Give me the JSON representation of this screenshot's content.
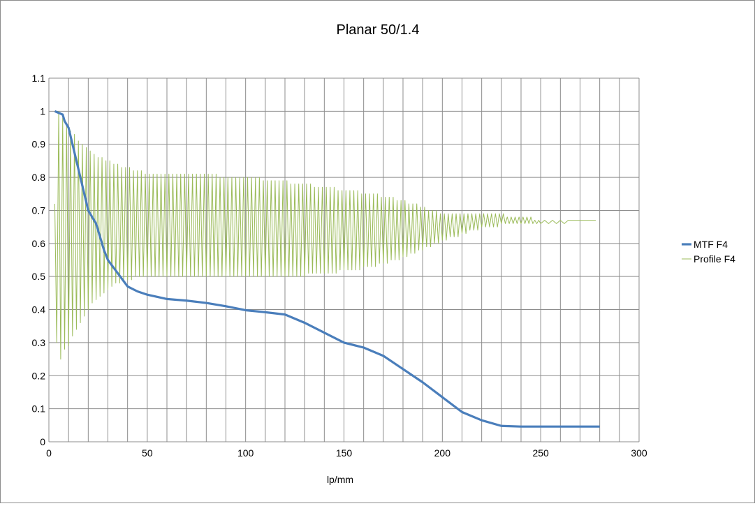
{
  "colors": {
    "mtf": "#4a7ebb",
    "profile": "#9bbb59",
    "grid": "#8c8c8c",
    "frame": "#8c8c8c"
  },
  "chart_data": {
    "type": "line",
    "title": "Planar 50/1.4",
    "xlabel": "lp/mm",
    "ylabel": "",
    "xlim": [
      0,
      300
    ],
    "ylim": [
      0,
      1.1
    ],
    "x_ticks": [
      "0",
      "50",
      "100",
      "150",
      "200",
      "250",
      "300"
    ],
    "y_ticks": [
      "0",
      "0.1",
      "0.2",
      "0.3",
      "0.4",
      "0.5",
      "0.6",
      "0.7",
      "0.8",
      "0.9",
      "1",
      "1.1"
    ],
    "grid": true,
    "legend_position": "right",
    "series": [
      {
        "name": "MTF F4",
        "points": [
          [
            3,
            1.0
          ],
          [
            5,
            0.995
          ],
          [
            7,
            0.99
          ],
          [
            8,
            0.97
          ],
          [
            10,
            0.95
          ],
          [
            12,
            0.9
          ],
          [
            14,
            0.85
          ],
          [
            16,
            0.8
          ],
          [
            18,
            0.75
          ],
          [
            20,
            0.7
          ],
          [
            22,
            0.68
          ],
          [
            24,
            0.66
          ],
          [
            26,
            0.62
          ],
          [
            28,
            0.58
          ],
          [
            30,
            0.55
          ],
          [
            35,
            0.51
          ],
          [
            40,
            0.47
          ],
          [
            45,
            0.455
          ],
          [
            50,
            0.445
          ],
          [
            60,
            0.432
          ],
          [
            70,
            0.427
          ],
          [
            80,
            0.42
          ],
          [
            90,
            0.41
          ],
          [
            100,
            0.398
          ],
          [
            110,
            0.392
          ],
          [
            120,
            0.385
          ],
          [
            130,
            0.36
          ],
          [
            140,
            0.33
          ],
          [
            150,
            0.3
          ],
          [
            160,
            0.285
          ],
          [
            170,
            0.26
          ],
          [
            180,
            0.22
          ],
          [
            190,
            0.18
          ],
          [
            200,
            0.135
          ],
          [
            210,
            0.09
          ],
          [
            220,
            0.065
          ],
          [
            230,
            0.048
          ],
          [
            240,
            0.046
          ],
          [
            250,
            0.046
          ],
          [
            260,
            0.046
          ],
          [
            270,
            0.046
          ],
          [
            280,
            0.046
          ]
        ]
      },
      {
        "name": "Profile F4",
        "points": [
          [
            3,
            0.72
          ],
          [
            4,
            0.3
          ],
          [
            5,
            1.0
          ],
          [
            6,
            0.25
          ],
          [
            7,
            0.98
          ],
          [
            8,
            0.28
          ],
          [
            9,
            0.96
          ],
          [
            10,
            0.29
          ],
          [
            11,
            0.94
          ],
          [
            12,
            0.32
          ],
          [
            13,
            0.93
          ],
          [
            14,
            0.34
          ],
          [
            15,
            0.91
          ],
          [
            16,
            0.36
          ],
          [
            17,
            0.9
          ],
          [
            18,
            0.38
          ],
          [
            19,
            0.89
          ],
          [
            20,
            0.4
          ],
          [
            21,
            0.88
          ],
          [
            22,
            0.42
          ],
          [
            23,
            0.87
          ],
          [
            24,
            0.43
          ],
          [
            25,
            0.86
          ],
          [
            26,
            0.44
          ],
          [
            27,
            0.86
          ],
          [
            28,
            0.45
          ],
          [
            29,
            0.85
          ],
          [
            30,
            0.46
          ],
          [
            31,
            0.85
          ],
          [
            32,
            0.47
          ],
          [
            33,
            0.84
          ],
          [
            34,
            0.48
          ],
          [
            35,
            0.84
          ],
          [
            36,
            0.48
          ],
          [
            37,
            0.83
          ],
          [
            38,
            0.49
          ],
          [
            39,
            0.83
          ],
          [
            40,
            0.49
          ],
          [
            41,
            0.83
          ],
          [
            42,
            0.49
          ],
          [
            43,
            0.82
          ],
          [
            44,
            0.5
          ],
          [
            45,
            0.82
          ],
          [
            46,
            0.5
          ],
          [
            47,
            0.82
          ],
          [
            48,
            0.5
          ],
          [
            49,
            0.81
          ],
          [
            50,
            0.5
          ],
          [
            51,
            0.81
          ],
          [
            52,
            0.5
          ],
          [
            53,
            0.81
          ],
          [
            54,
            0.5
          ],
          [
            55,
            0.81
          ],
          [
            56,
            0.5
          ],
          [
            57,
            0.81
          ],
          [
            58,
            0.5
          ],
          [
            59,
            0.81
          ],
          [
            60,
            0.5
          ],
          [
            61,
            0.81
          ],
          [
            62,
            0.5
          ],
          [
            63,
            0.81
          ],
          [
            64,
            0.5
          ],
          [
            65,
            0.81
          ],
          [
            66,
            0.5
          ],
          [
            67,
            0.81
          ],
          [
            68,
            0.5
          ],
          [
            69,
            0.81
          ],
          [
            70,
            0.5
          ],
          [
            71,
            0.81
          ],
          [
            72,
            0.5
          ],
          [
            73,
            0.81
          ],
          [
            74,
            0.5
          ],
          [
            75,
            0.81
          ],
          [
            76,
            0.5
          ],
          [
            77,
            0.81
          ],
          [
            78,
            0.5
          ],
          [
            79,
            0.81
          ],
          [
            80,
            0.5
          ],
          [
            81,
            0.81
          ],
          [
            82,
            0.5
          ],
          [
            83,
            0.81
          ],
          [
            84,
            0.5
          ],
          [
            85,
            0.81
          ],
          [
            86,
            0.5
          ],
          [
            87,
            0.8
          ],
          [
            88,
            0.5
          ],
          [
            89,
            0.8
          ],
          [
            90,
            0.5
          ],
          [
            91,
            0.8
          ],
          [
            92,
            0.5
          ],
          [
            93,
            0.8
          ],
          [
            94,
            0.5
          ],
          [
            95,
            0.8
          ],
          [
            96,
            0.5
          ],
          [
            97,
            0.8
          ],
          [
            98,
            0.5
          ],
          [
            99,
            0.8
          ],
          [
            100,
            0.5
          ],
          [
            101,
            0.8
          ],
          [
            102,
            0.5
          ],
          [
            103,
            0.8
          ],
          [
            104,
            0.5
          ],
          [
            105,
            0.8
          ],
          [
            106,
            0.5
          ],
          [
            107,
            0.8
          ],
          [
            108,
            0.5
          ],
          [
            109,
            0.79
          ],
          [
            110,
            0.5
          ],
          [
            111,
            0.79
          ],
          [
            112,
            0.5
          ],
          [
            113,
            0.79
          ],
          [
            114,
            0.5
          ],
          [
            115,
            0.79
          ],
          [
            116,
            0.5
          ],
          [
            117,
            0.79
          ],
          [
            118,
            0.5
          ],
          [
            119,
            0.79
          ],
          [
            120,
            0.5
          ],
          [
            121,
            0.79
          ],
          [
            122,
            0.5
          ],
          [
            123,
            0.78
          ],
          [
            124,
            0.5
          ],
          [
            125,
            0.78
          ],
          [
            126,
            0.5
          ],
          [
            127,
            0.78
          ],
          [
            128,
            0.5
          ],
          [
            129,
            0.78
          ],
          [
            130,
            0.5
          ],
          [
            131,
            0.78
          ],
          [
            132,
            0.51
          ],
          [
            133,
            0.78
          ],
          [
            134,
            0.51
          ],
          [
            135,
            0.77
          ],
          [
            136,
            0.51
          ],
          [
            137,
            0.77
          ],
          [
            138,
            0.51
          ],
          [
            139,
            0.77
          ],
          [
            140,
            0.51
          ],
          [
            141,
            0.77
          ],
          [
            142,
            0.51
          ],
          [
            143,
            0.77
          ],
          [
            144,
            0.51
          ],
          [
            145,
            0.77
          ],
          [
            146,
            0.51
          ],
          [
            147,
            0.76
          ],
          [
            148,
            0.52
          ],
          [
            149,
            0.76
          ],
          [
            150,
            0.52
          ],
          [
            151,
            0.76
          ],
          [
            152,
            0.52
          ],
          [
            153,
            0.76
          ],
          [
            154,
            0.52
          ],
          [
            155,
            0.76
          ],
          [
            156,
            0.52
          ],
          [
            157,
            0.76
          ],
          [
            158,
            0.52
          ],
          [
            159,
            0.75
          ],
          [
            160,
            0.53
          ],
          [
            161,
            0.75
          ],
          [
            162,
            0.53
          ],
          [
            163,
            0.75
          ],
          [
            164,
            0.53
          ],
          [
            165,
            0.75
          ],
          [
            166,
            0.53
          ],
          [
            167,
            0.75
          ],
          [
            168,
            0.54
          ],
          [
            169,
            0.74
          ],
          [
            170,
            0.54
          ],
          [
            171,
            0.74
          ],
          [
            172,
            0.54
          ],
          [
            173,
            0.74
          ],
          [
            174,
            0.55
          ],
          [
            175,
            0.74
          ],
          [
            176,
            0.55
          ],
          [
            177,
            0.73
          ],
          [
            178,
            0.55
          ],
          [
            179,
            0.73
          ],
          [
            180,
            0.56
          ],
          [
            181,
            0.73
          ],
          [
            182,
            0.56
          ],
          [
            183,
            0.72
          ],
          [
            184,
            0.57
          ],
          [
            185,
            0.72
          ],
          [
            186,
            0.57
          ],
          [
            187,
            0.72
          ],
          [
            188,
            0.58
          ],
          [
            189,
            0.71
          ],
          [
            190,
            0.58
          ],
          [
            191,
            0.71
          ],
          [
            192,
            0.59
          ],
          [
            193,
            0.7
          ],
          [
            194,
            0.59
          ],
          [
            195,
            0.7
          ],
          [
            196,
            0.6
          ],
          [
            197,
            0.7
          ],
          [
            198,
            0.6
          ],
          [
            199,
            0.69
          ],
          [
            200,
            0.61
          ],
          [
            201,
            0.69
          ],
          [
            202,
            0.61
          ],
          [
            203,
            0.69
          ],
          [
            204,
            0.62
          ],
          [
            205,
            0.69
          ],
          [
            206,
            0.62
          ],
          [
            207,
            0.69
          ],
          [
            208,
            0.62
          ],
          [
            209,
            0.69
          ],
          [
            210,
            0.63
          ],
          [
            211,
            0.69
          ],
          [
            212,
            0.63
          ],
          [
            213,
            0.69
          ],
          [
            214,
            0.64
          ],
          [
            215,
            0.69
          ],
          [
            216,
            0.64
          ],
          [
            217,
            0.69
          ],
          [
            218,
            0.64
          ],
          [
            219,
            0.69
          ],
          [
            220,
            0.65
          ],
          [
            221,
            0.69
          ],
          [
            222,
            0.65
          ],
          [
            223,
            0.69
          ],
          [
            224,
            0.65
          ],
          [
            225,
            0.69
          ],
          [
            226,
            0.65
          ],
          [
            227,
            0.69
          ],
          [
            228,
            0.65
          ],
          [
            229,
            0.69
          ],
          [
            230,
            0.66
          ],
          [
            231,
            0.69
          ],
          [
            232,
            0.66
          ],
          [
            233,
            0.68
          ],
          [
            234,
            0.66
          ],
          [
            235,
            0.68
          ],
          [
            236,
            0.66
          ],
          [
            237,
            0.68
          ],
          [
            238,
            0.66
          ],
          [
            239,
            0.68
          ],
          [
            240,
            0.66
          ],
          [
            241,
            0.68
          ],
          [
            242,
            0.66
          ],
          [
            243,
            0.68
          ],
          [
            244,
            0.66
          ],
          [
            245,
            0.68
          ],
          [
            246,
            0.66
          ],
          [
            247,
            0.67
          ],
          [
            248,
            0.66
          ],
          [
            249,
            0.67
          ],
          [
            250,
            0.66
          ],
          [
            252,
            0.67
          ],
          [
            254,
            0.66
          ],
          [
            256,
            0.67
          ],
          [
            258,
            0.66
          ],
          [
            260,
            0.67
          ],
          [
            262,
            0.66
          ],
          [
            264,
            0.67
          ],
          [
            266,
            0.67
          ],
          [
            268,
            0.67
          ],
          [
            270,
            0.67
          ],
          [
            272,
            0.67
          ],
          [
            274,
            0.67
          ],
          [
            276,
            0.67
          ],
          [
            278,
            0.67
          ]
        ]
      }
    ]
  }
}
